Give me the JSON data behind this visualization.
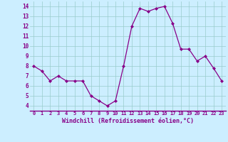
{
  "x": [
    0,
    1,
    2,
    3,
    4,
    5,
    6,
    7,
    8,
    9,
    10,
    11,
    12,
    13,
    14,
    15,
    16,
    17,
    18,
    19,
    20,
    21,
    22,
    23
  ],
  "y": [
    8.0,
    7.5,
    6.5,
    7.0,
    6.5,
    6.5,
    6.5,
    5.0,
    4.5,
    4.0,
    4.5,
    8.0,
    12.0,
    13.8,
    13.5,
    13.8,
    14.0,
    12.3,
    9.7,
    9.7,
    8.5,
    9.0,
    7.8,
    6.5
  ],
  "line_color": "#880088",
  "marker": "D",
  "marker_size": 2,
  "bg_color": "#cceeff",
  "grid_color": "#99cccc",
  "xlabel": "Windchill (Refroidissement éolien,°C)",
  "xlabel_color": "#880088",
  "tick_color": "#880088",
  "axis_color": "#880088",
  "ylim": [
    3.5,
    14.5
  ],
  "xlim": [
    -0.5,
    23.5
  ],
  "yticks": [
    4,
    5,
    6,
    7,
    8,
    9,
    10,
    11,
    12,
    13,
    14
  ],
  "xticks": [
    0,
    1,
    2,
    3,
    4,
    5,
    6,
    7,
    8,
    9,
    10,
    11,
    12,
    13,
    14,
    15,
    16,
    17,
    18,
    19,
    20,
    21,
    22,
    23
  ],
  "xtick_labels": [
    "0",
    "1",
    "2",
    "3",
    "4",
    "5",
    "6",
    "7",
    "8",
    "9",
    "10",
    "11",
    "12",
    "13",
    "14",
    "15",
    "16",
    "17",
    "18",
    "19",
    "20",
    "21",
    "22",
    "23"
  ]
}
